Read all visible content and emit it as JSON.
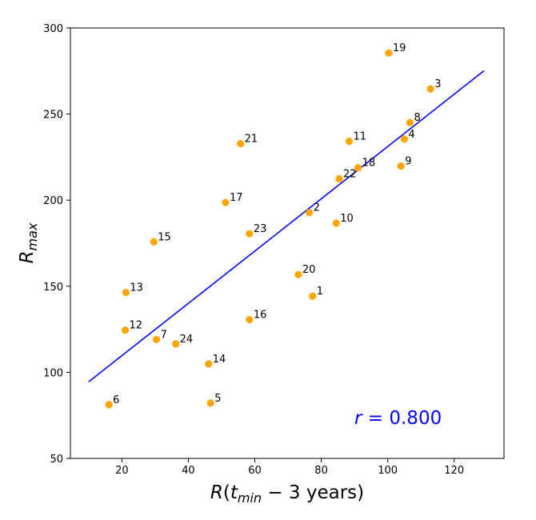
{
  "chart_data": {
    "type": "scatter",
    "xlabel": "R(t_min − 3 years)",
    "ylabel": "R_max",
    "xlim": [
      4.5,
      135
    ],
    "ylim": [
      50,
      300
    ],
    "xticks": [
      20,
      40,
      60,
      80,
      100,
      120
    ],
    "yticks": [
      50,
      100,
      150,
      200,
      250,
      300
    ],
    "grid": false,
    "colors": {
      "points": "#ffa500",
      "fit": "#0000ff",
      "annotation": "#0000ff"
    },
    "points": [
      {
        "label": "1",
        "x": 77.4,
        "y": 144.3
      },
      {
        "label": "2",
        "x": 76.4,
        "y": 192.8
      },
      {
        "label": "3",
        "x": 112.9,
        "y": 264.6
      },
      {
        "label": "4",
        "x": 105.0,
        "y": 235.5
      },
      {
        "label": "5",
        "x": 46.7,
        "y": 82.1
      },
      {
        "label": "6",
        "x": 16.1,
        "y": 81.2
      },
      {
        "label": "7",
        "x": 30.4,
        "y": 119.1
      },
      {
        "label": "8",
        "x": 106.7,
        "y": 245.1
      },
      {
        "label": "9",
        "x": 104.0,
        "y": 219.8
      },
      {
        "label": "10",
        "x": 84.5,
        "y": 186.6
      },
      {
        "label": "11",
        "x": 88.4,
        "y": 234.2
      },
      {
        "label": "12",
        "x": 21.0,
        "y": 124.5
      },
      {
        "label": "13",
        "x": 21.2,
        "y": 146.4
      },
      {
        "label": "14",
        "x": 46.1,
        "y": 104.9
      },
      {
        "label": "15",
        "x": 29.6,
        "y": 175.8
      },
      {
        "label": "16",
        "x": 58.4,
        "y": 130.6
      },
      {
        "label": "17",
        "x": 51.2,
        "y": 198.7
      },
      {
        "label": "18",
        "x": 91.1,
        "y": 218.8
      },
      {
        "label": "19",
        "x": 100.3,
        "y": 285.5
      },
      {
        "label": "20",
        "x": 73.1,
        "y": 156.8
      },
      {
        "label": "21",
        "x": 55.7,
        "y": 232.8
      },
      {
        "label": "22",
        "x": 85.4,
        "y": 212.4
      },
      {
        "label": "23",
        "x": 58.4,
        "y": 180.5
      },
      {
        "label": "24",
        "x": 36.2,
        "y": 116.5
      }
    ],
    "fit_line": {
      "x": [
        10,
        129
      ],
      "y": [
        94.5,
        275.2
      ]
    },
    "annotation": "r =  0.800"
  }
}
